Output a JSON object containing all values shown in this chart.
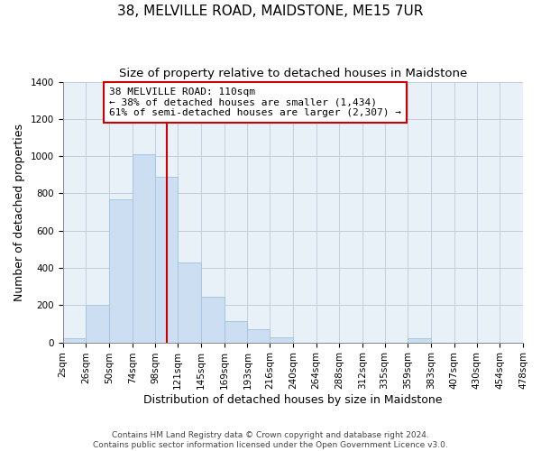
{
  "title": "38, MELVILLE ROAD, MAIDSTONE, ME15 7UR",
  "subtitle": "Size of property relative to detached houses in Maidstone",
  "xlabel": "Distribution of detached houses by size in Maidstone",
  "ylabel": "Number of detached properties",
  "bar_edges": [
    2,
    26,
    50,
    74,
    98,
    121,
    145,
    169,
    193,
    216,
    240,
    264,
    288,
    312,
    335,
    359,
    383,
    407,
    430,
    454,
    478
  ],
  "bar_heights": [
    20,
    200,
    770,
    1010,
    890,
    430,
    245,
    115,
    70,
    25,
    0,
    0,
    0,
    0,
    0,
    20,
    0,
    0,
    0,
    0
  ],
  "tick_labels": [
    "2sqm",
    "26sqm",
    "50sqm",
    "74sqm",
    "98sqm",
    "121sqm",
    "145sqm",
    "169sqm",
    "193sqm",
    "216sqm",
    "240sqm",
    "264sqm",
    "288sqm",
    "312sqm",
    "335sqm",
    "359sqm",
    "383sqm",
    "407sqm",
    "430sqm",
    "454sqm",
    "478sqm"
  ],
  "bar_color": "#ccdff2",
  "bar_edge_color": "#a8c4e0",
  "vline_x": 110,
  "vline_color": "#cc0000",
  "annotation_title": "38 MELVILLE ROAD: 110sqm",
  "annotation_line1": "← 38% of detached houses are smaller (1,434)",
  "annotation_line2": "61% of semi-detached houses are larger (2,307) →",
  "annotation_box_color": "#ffffff",
  "annotation_box_edge": "#cc0000",
  "ylim": [
    0,
    1400
  ],
  "yticks": [
    0,
    200,
    400,
    600,
    800,
    1000,
    1200,
    1400
  ],
  "plot_bg_color": "#e8f0f8",
  "footer1": "Contains HM Land Registry data © Crown copyright and database right 2024.",
  "footer2": "Contains public sector information licensed under the Open Government Licence v3.0.",
  "title_fontsize": 11,
  "subtitle_fontsize": 9.5,
  "axis_label_fontsize": 9,
  "tick_fontsize": 7.5,
  "footer_fontsize": 6.5
}
